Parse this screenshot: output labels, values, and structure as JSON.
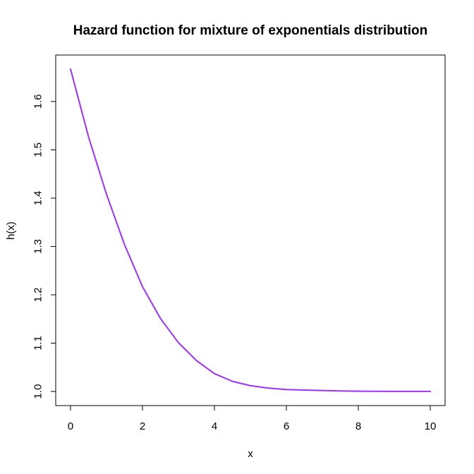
{
  "chart_data": {
    "type": "line",
    "title": "Hazard function for mixture of exponentials distribution",
    "xlabel": "x",
    "ylabel": "h(x)",
    "xlim": [
      0,
      10
    ],
    "ylim": [
      1.0,
      1.667
    ],
    "x_ticks": [
      "0",
      "2",
      "4",
      "6",
      "8",
      "10"
    ],
    "y_ticks": [
      "1.0",
      "1.1",
      "1.2",
      "1.3",
      "1.4",
      "1.5",
      "1.6"
    ],
    "grid": false,
    "series": [
      {
        "color": "#9B30FF",
        "x": [
          0,
          0.5,
          1,
          1.5,
          2,
          2.5,
          3,
          3.5,
          4,
          4.5,
          5,
          5.5,
          6,
          6.5,
          7,
          7.5,
          8,
          8.5,
          9,
          9.5,
          10
        ],
        "values": [
          1.667,
          1.527,
          1.408,
          1.304,
          1.217,
          1.151,
          1.101,
          1.064,
          1.037,
          1.021,
          1.012,
          1.007,
          1.004,
          1.003,
          1.002,
          1.001,
          1.0005,
          1.0003,
          1.0002,
          1.0001,
          1.0001
        ]
      }
    ]
  }
}
